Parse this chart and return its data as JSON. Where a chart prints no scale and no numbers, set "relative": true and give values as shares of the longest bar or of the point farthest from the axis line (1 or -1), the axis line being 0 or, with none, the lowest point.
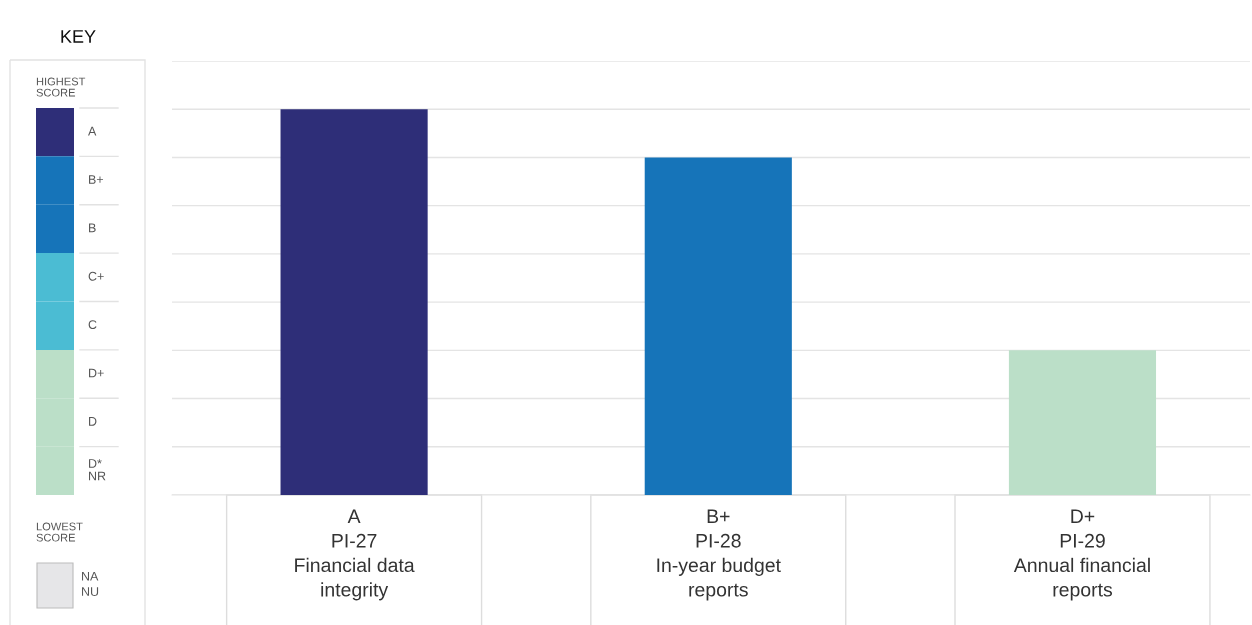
{
  "chart_data": [
    {
      "type": "other",
      "title": "KEY",
      "annotations": [
        "HIGHEST SCORE",
        "LOWEST SCORE"
      ],
      "categories": [
        "A",
        "B+",
        "B",
        "C+",
        "C",
        "D+",
        "D",
        "D*\nNR",
        "NA\nNU"
      ],
      "colors": [
        "#2e2e78",
        "#1674b9",
        "#1674b9",
        "#4bbcd3",
        "#4bbcd3",
        "#bbdfc8",
        "#bbdfc8",
        "#bbdfc8",
        "#e6e6e8"
      ]
    },
    {
      "type": "bar",
      "relative": true,
      "grid": "y",
      "categories": [
        "A\nPI-27\nFinancial data\nintegrity",
        "B+\nPI-28\nIn-year budget\nreports",
        "D+\nPI-29\nAnnual financial\nreports"
      ],
      "values": [
        1,
        0.875,
        0.375
      ],
      "colors": [
        "#2e2e78",
        "#1674b9",
        "#bbdfc8"
      ]
    }
  ]
}
